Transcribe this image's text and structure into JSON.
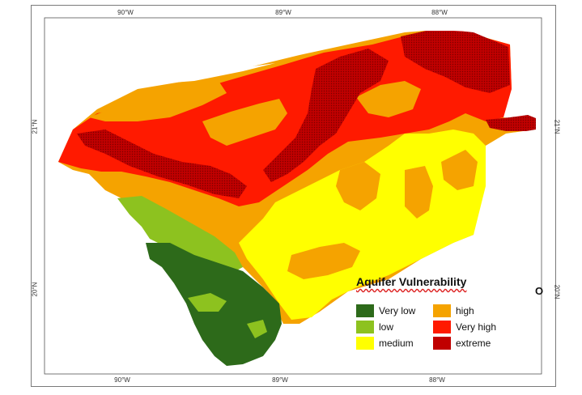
{
  "map": {
    "graticule": {
      "top": [
        "90°W",
        "89°W",
        "88°W"
      ],
      "bottom": [
        "90°W",
        "89°W",
        "88°W"
      ],
      "left": [
        "21°N",
        "20°N"
      ],
      "right": [
        "21°N",
        "20°N"
      ]
    },
    "stray_glyph": "O"
  },
  "legend": {
    "title": "Aquifer Vulnerability",
    "items": [
      {
        "label": "Very low",
        "color": "#2d6a1a"
      },
      {
        "label": "low",
        "color": "#8dc21f"
      },
      {
        "label": "medium",
        "color": "#ffff00"
      },
      {
        "label": "high",
        "color": "#f5a300"
      },
      {
        "label": "Very high",
        "color": "#ff1a00"
      },
      {
        "label": "extreme",
        "color": "#c00000"
      }
    ]
  },
  "colors": {
    "very_low": "#2d6a1a",
    "low": "#8dc21f",
    "medium": "#ffff00",
    "high": "#f5a300",
    "very_high": "#ff1a00",
    "extreme": "#c00000"
  }
}
